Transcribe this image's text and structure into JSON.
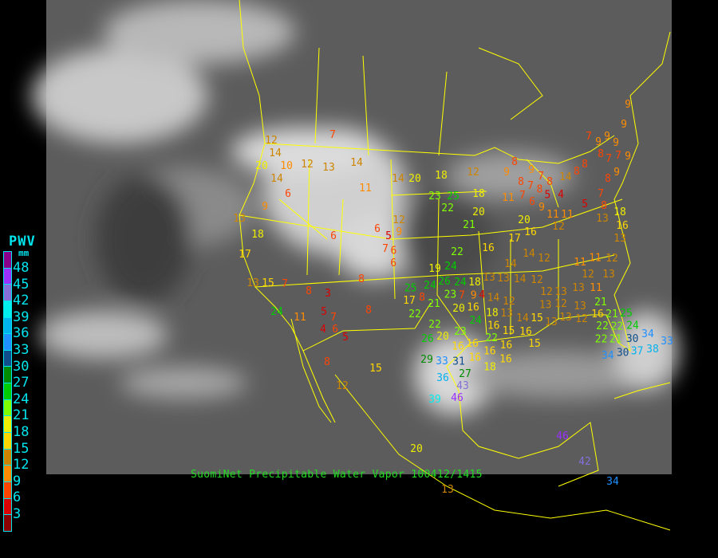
{
  "caption": "SuomiNet Precipitable Water Vapor 100412/1415",
  "legend": {
    "title": "PWV",
    "unit": "mm",
    "labels": [
      "48",
      "45",
      "42",
      "39",
      "36",
      "33",
      "30",
      "27",
      "24",
      "21",
      "18",
      "15",
      "12",
      "9",
      "6",
      "3"
    ],
    "colors": [
      "#8b008b",
      "#9b30ff",
      "#8470d8",
      "#00eeee",
      "#00b2ee",
      "#1e90ff",
      "#104e8b",
      "#008b00",
      "#00cd00",
      "#7fff00",
      "#eeee00",
      "#ffd700",
      "#cd8500",
      "#ff8c00",
      "#ff4500",
      "#dd0000",
      "#8b0000"
    ]
  },
  "colors": {
    "borders": "#ffff00",
    "legend_text": "#00e5ee",
    "caption": "#22dd22"
  },
  "stations": [
    7,
    12,
    14,
    20,
    10,
    12,
    13,
    14,
    14,
    6,
    11,
    14,
    20,
    18,
    23,
    25,
    22,
    9,
    13,
    18,
    12,
    6,
    9,
    5,
    6,
    7,
    6,
    6,
    17,
    13,
    15,
    7,
    8,
    3,
    8,
    24,
    11,
    5,
    7,
    4,
    6,
    5,
    8,
    17,
    8,
    21,
    22,
    22,
    20,
    23,
    26,
    16,
    22,
    16,
    19,
    24,
    26,
    24,
    24,
    23,
    18,
    9,
    4,
    16,
    20,
    25,
    24,
    18,
    7,
    14,
    12,
    13,
    13,
    14,
    14,
    14,
    12,
    11,
    12,
    12,
    13,
    12,
    12,
    13,
    13,
    12,
    13,
    11,
    13,
    14,
    16,
    15,
    15,
    13,
    13,
    12,
    13,
    16,
    21,
    21,
    25,
    22,
    22,
    24,
    21,
    22,
    30,
    34,
    30,
    34,
    37,
    38,
    22,
    16,
    16,
    16,
    16,
    16,
    18,
    16,
    15,
    29,
    33,
    31,
    27,
    43,
    36,
    46,
    39,
    33,
    9,
    9,
    7,
    9,
    9,
    9,
    7,
    9,
    8,
    7,
    8,
    8,
    14,
    9,
    8,
    12,
    8,
    9,
    9,
    7,
    8,
    7,
    8,
    8,
    5,
    7,
    6,
    9,
    4,
    18,
    11,
    5,
    7,
    8,
    13,
    18,
    16,
    20,
    21,
    11,
    11,
    12,
    20,
    16,
    17,
    13,
    15,
    8,
    12,
    20,
    46,
    42,
    34,
    11,
    13
  ]
}
